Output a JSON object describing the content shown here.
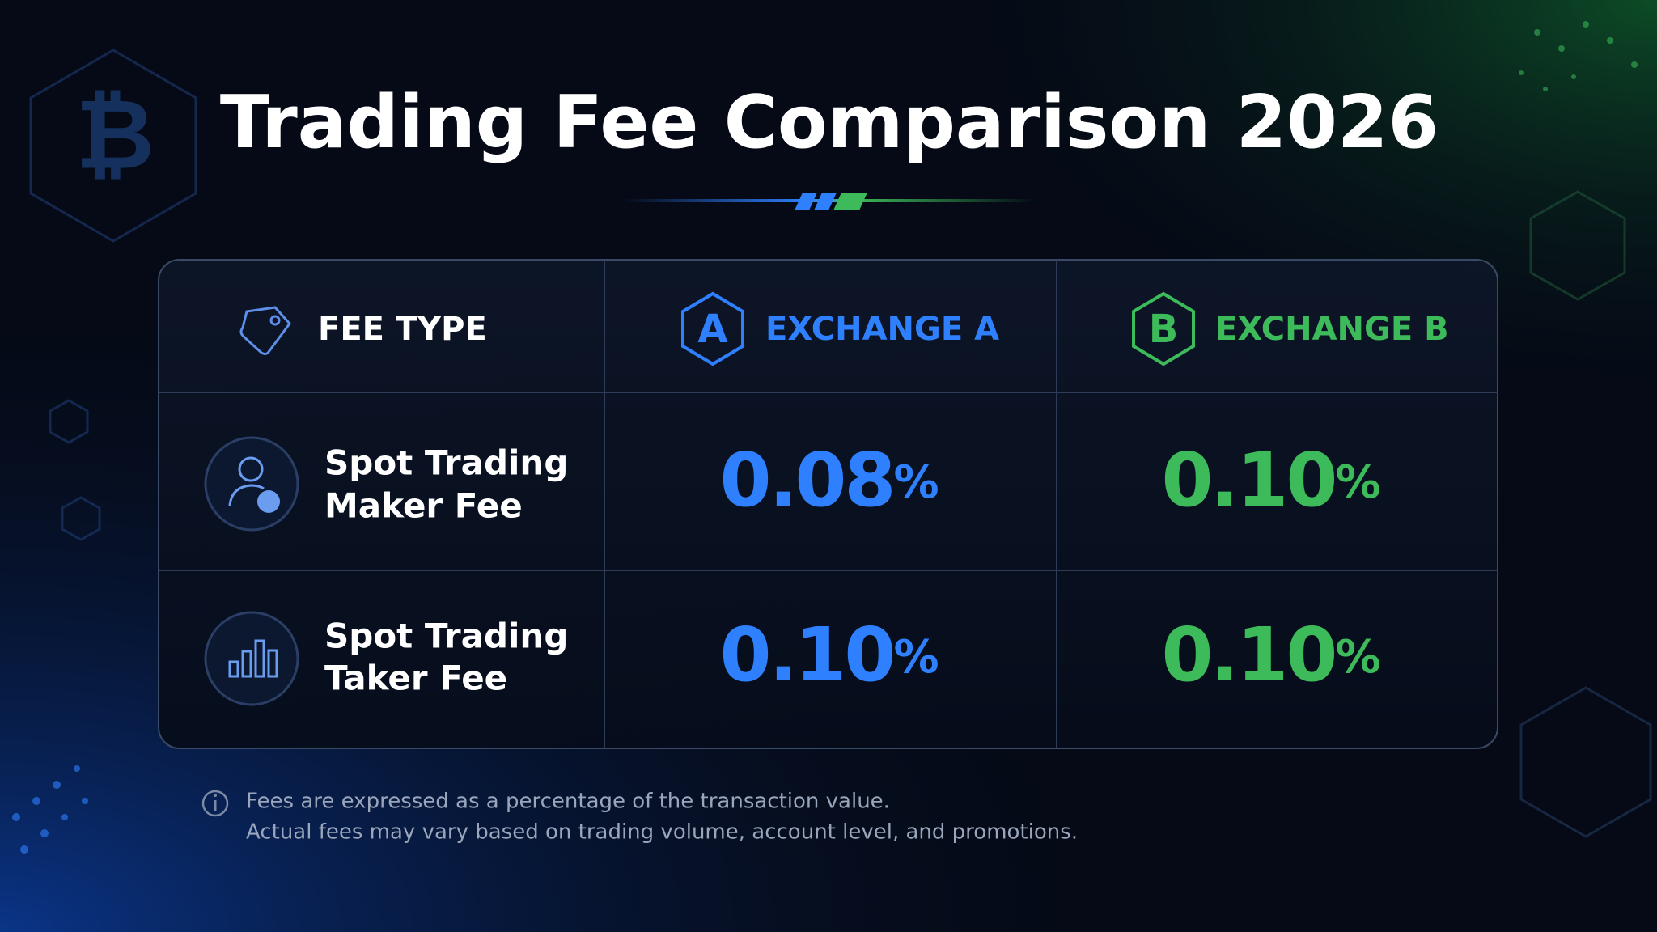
{
  "header": {
    "title": "Trading Fee Comparison 2026"
  },
  "table": {
    "columns": [
      "FEE TYPE",
      "EXCHANGE A",
      "EXCHANGE B"
    ],
    "rows": [
      {
        "label": [
          "Spot Trading",
          "Maker Fee"
        ],
        "exchange_a": {
          "value": "0.08",
          "unit": "%"
        },
        "exchange_b": {
          "value": "0.10",
          "unit": "%"
        }
      },
      {
        "label": [
          "Spot Trading",
          "Taker Fee"
        ],
        "exchange_a": {
          "value": "0.10",
          "unit": "%"
        },
        "exchange_b": {
          "value": "0.10",
          "unit": "%"
        }
      }
    ]
  },
  "notes": [
    "Fees are expressed as a percentage of the transaction value.",
    "Actual fees may vary based on trading volume, account level, and promotions."
  ]
}
